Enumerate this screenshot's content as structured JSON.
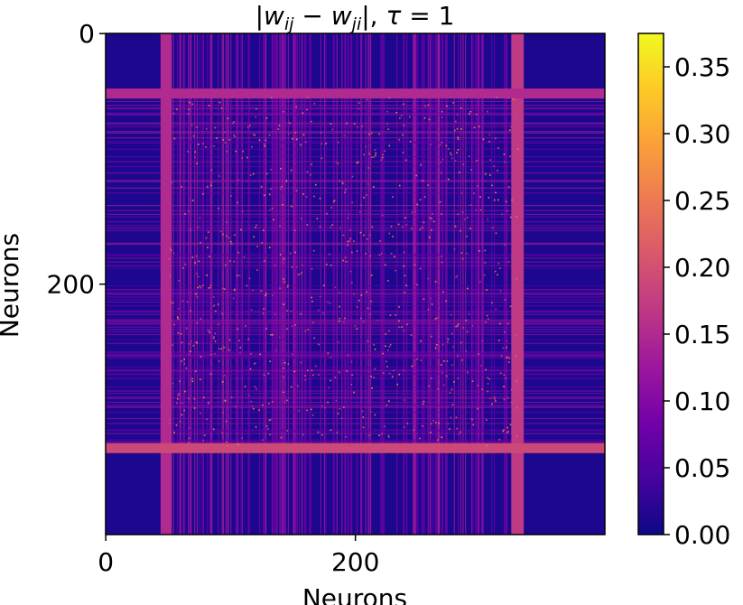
{
  "chart_data": {
    "type": "heatmap",
    "title": "|w_ij − w_ji|, τ = 1",
    "title_parts": {
      "w1": "w",
      "sub1": "ij",
      "minus": " − ",
      "w2": "w",
      "sub2": "ji",
      "bar_close": "|, ",
      "tau": "τ",
      "eq": " = 1",
      "bar_open": "|"
    },
    "xlabel": "Neurons",
    "ylabel": "Neurons",
    "x_ticks": [
      {
        "value": 0,
        "label": "0"
      },
      {
        "value": 200,
        "label": "200"
      }
    ],
    "y_ticks": [
      {
        "value": 0,
        "label": "0"
      },
      {
        "value": 200,
        "label": "200"
      }
    ],
    "matrix_size": 400,
    "colormap": "plasma",
    "colorbar": {
      "range": [
        0,
        0.375
      ],
      "ticks": [
        {
          "value": 0.0,
          "label": "0.00"
        },
        {
          "value": 0.05,
          "label": "0.05"
        },
        {
          "value": 0.1,
          "label": "0.10"
        },
        {
          "value": 0.15,
          "label": "0.15"
        },
        {
          "value": 0.2,
          "label": "0.20"
        },
        {
          "value": 0.25,
          "label": "0.25"
        },
        {
          "value": 0.3,
          "label": "0.30"
        },
        {
          "value": 0.35,
          "label": "0.35"
        }
      ]
    },
    "background_value": 0.012,
    "bands": [
      {
        "orientation": "vertical",
        "start": 44,
        "end": 53,
        "value": 0.15
      },
      {
        "orientation": "vertical",
        "start": 325,
        "end": 335,
        "value": 0.17
      },
      {
        "orientation": "horizontal",
        "start": 44,
        "end": 52,
        "value": 0.15
      },
      {
        "orientation": "horizontal",
        "start": 327,
        "end": 335,
        "value": 0.19
      }
    ],
    "stripe_region": [
      50,
      330
    ],
    "stripe_value_range": [
      0.06,
      0.14
    ],
    "colors": {
      "plasma_stops": [
        "#0d0887",
        "#46039f",
        "#7201a8",
        "#9c179e",
        "#bd3786",
        "#d8576b",
        "#ed7953",
        "#fb9f3a",
        "#fdca26",
        "#f0f921"
      ]
    }
  }
}
